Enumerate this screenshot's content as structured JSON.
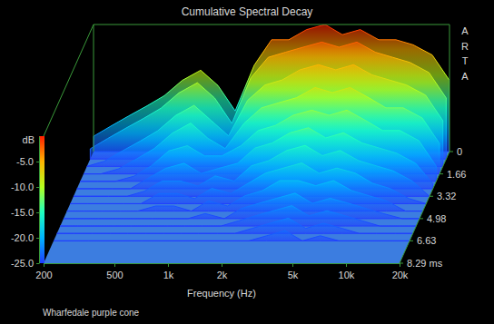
{
  "chart_data": {
    "type": "waterfall",
    "title": "Cumulative Spectral Decay",
    "x_label": "Frequency (Hz)",
    "y_label": "dB",
    "annotations": [
      "ARTA",
      "Wharfedale purple cone"
    ],
    "log": "x",
    "x": [
      200,
      250,
      315,
      400,
      500,
      630,
      800,
      1000,
      1250,
      1600,
      2000,
      2500,
      3150,
      4000,
      5000,
      6300,
      8000,
      10000,
      12500,
      16000,
      20000
    ],
    "xlim": [
      200,
      20000
    ],
    "xticks": [
      200,
      500,
      {
        "value": 1000,
        "label": "1k"
      },
      {
        "value": 2000,
        "label": "2k"
      },
      {
        "value": 5000,
        "label": "5k"
      },
      {
        "value": 10000,
        "label": "10k"
      },
      {
        "value": 20000,
        "label": "20k"
      }
    ],
    "ylim": [
      -25,
      0
    ],
    "yticks": [
      {
        "value": -5,
        "label": "-5.0"
      },
      {
        "value": -10,
        "label": "-10.0"
      },
      {
        "value": -15,
        "label": "-15.0"
      },
      {
        "value": -20,
        "label": "-20.0"
      },
      {
        "value": -25,
        "label": "-25.0"
      }
    ],
    "z": [
      0,
      0.55,
      1.1,
      1.66,
      2.21,
      2.76,
      3.32,
      3.87,
      4.42,
      4.98,
      5.53,
      6.08,
      6.63
    ],
    "zlim": [
      0,
      8.29
    ],
    "zticks": [
      0,
      1.66,
      3.32,
      4.98,
      6.63,
      {
        "value": 8.29,
        "label": "8.29 ms"
      }
    ],
    "series": [
      {
        "values": [
          -22,
          -20,
          -18,
          -16,
          -14,
          -11,
          -9,
          -12,
          -17,
          -8,
          -3,
          -3,
          -1,
          0,
          -2,
          -1,
          -3,
          -3,
          -4,
          -6,
          -11
        ]
      },
      {
        "values": [
          -23,
          -21,
          -19,
          -17,
          -15,
          -12,
          -10,
          -13,
          -18,
          -9,
          -5,
          -4,
          -3,
          -2,
          -3,
          -2,
          -4,
          -5,
          -6,
          -8,
          -13
        ]
      },
      {
        "values": [
          -25,
          -24,
          -22,
          -20,
          -18,
          -15,
          -13,
          -16,
          -19,
          -12,
          -9,
          -8,
          -6,
          -5,
          -6,
          -5,
          -7,
          -8,
          -9,
          -11,
          -16
        ]
      },
      {
        "values": [
          -25,
          -25,
          -24,
          -22,
          -20,
          -17,
          -15,
          -18,
          -20,
          -15,
          -12,
          -11,
          -10,
          -8,
          -9,
          -8,
          -10,
          -12,
          -12,
          -14,
          -19
        ]
      },
      {
        "values": [
          -25,
          -25,
          -25,
          -24,
          -22,
          -19,
          -18,
          -20,
          -20,
          -18,
          -15,
          -14,
          -12,
          -11,
          -12,
          -11,
          -13,
          -15,
          -15,
          -17,
          -22
        ]
      },
      {
        "values": [
          -25,
          -25,
          -25,
          -25,
          -23,
          -21,
          -20,
          -22,
          -21,
          -20,
          -17,
          -16,
          -14,
          -13,
          -15,
          -14,
          -16,
          -17,
          -18,
          -20,
          -24
        ]
      },
      {
        "values": [
          -25,
          -25,
          -25,
          -25,
          -24,
          -22,
          -22,
          -23,
          -21,
          -22,
          -19,
          -18,
          -16,
          -15,
          -17,
          -16,
          -18,
          -19,
          -20,
          -22,
          -25
        ]
      },
      {
        "values": [
          -25,
          -25,
          -25,
          -25,
          -25,
          -23,
          -23,
          -24,
          -22,
          -23,
          -21,
          -19,
          -18,
          -17,
          -19,
          -18,
          -19,
          -21,
          -22,
          -24,
          -25
        ]
      },
      {
        "values": [
          -25,
          -25,
          -25,
          -25,
          -25,
          -24,
          -24,
          -25,
          -23,
          -24,
          -22,
          -21,
          -19,
          -19,
          -20,
          -19,
          -21,
          -22,
          -23,
          -25,
          -25
        ]
      },
      {
        "values": [
          -25,
          -25,
          -25,
          -25,
          -25,
          -25,
          -25,
          -25,
          -24,
          -25,
          -23,
          -22,
          -21,
          -20,
          -22,
          -21,
          -22,
          -23,
          -24,
          -25,
          -25
        ]
      },
      {
        "values": [
          -25,
          -25,
          -25,
          -25,
          -25,
          -25,
          -25,
          -25,
          -25,
          -25,
          -24,
          -23,
          -22,
          -21,
          -23,
          -22,
          -23,
          -24,
          -25,
          -25,
          -25
        ]
      },
      {
        "values": [
          -25,
          -25,
          -25,
          -25,
          -25,
          -25,
          -25,
          -25,
          -25,
          -25,
          -25,
          -24,
          -23,
          -22,
          -24,
          -23,
          -24,
          -25,
          -25,
          -25,
          -25
        ]
      },
      {
        "values": [
          -25,
          -25,
          -25,
          -25,
          -25,
          -25,
          -25,
          -25,
          -25,
          -25,
          -25,
          -25,
          -24,
          -23,
          -25,
          -24,
          -25,
          -25,
          -25,
          -25,
          -25
        ]
      }
    ]
  }
}
